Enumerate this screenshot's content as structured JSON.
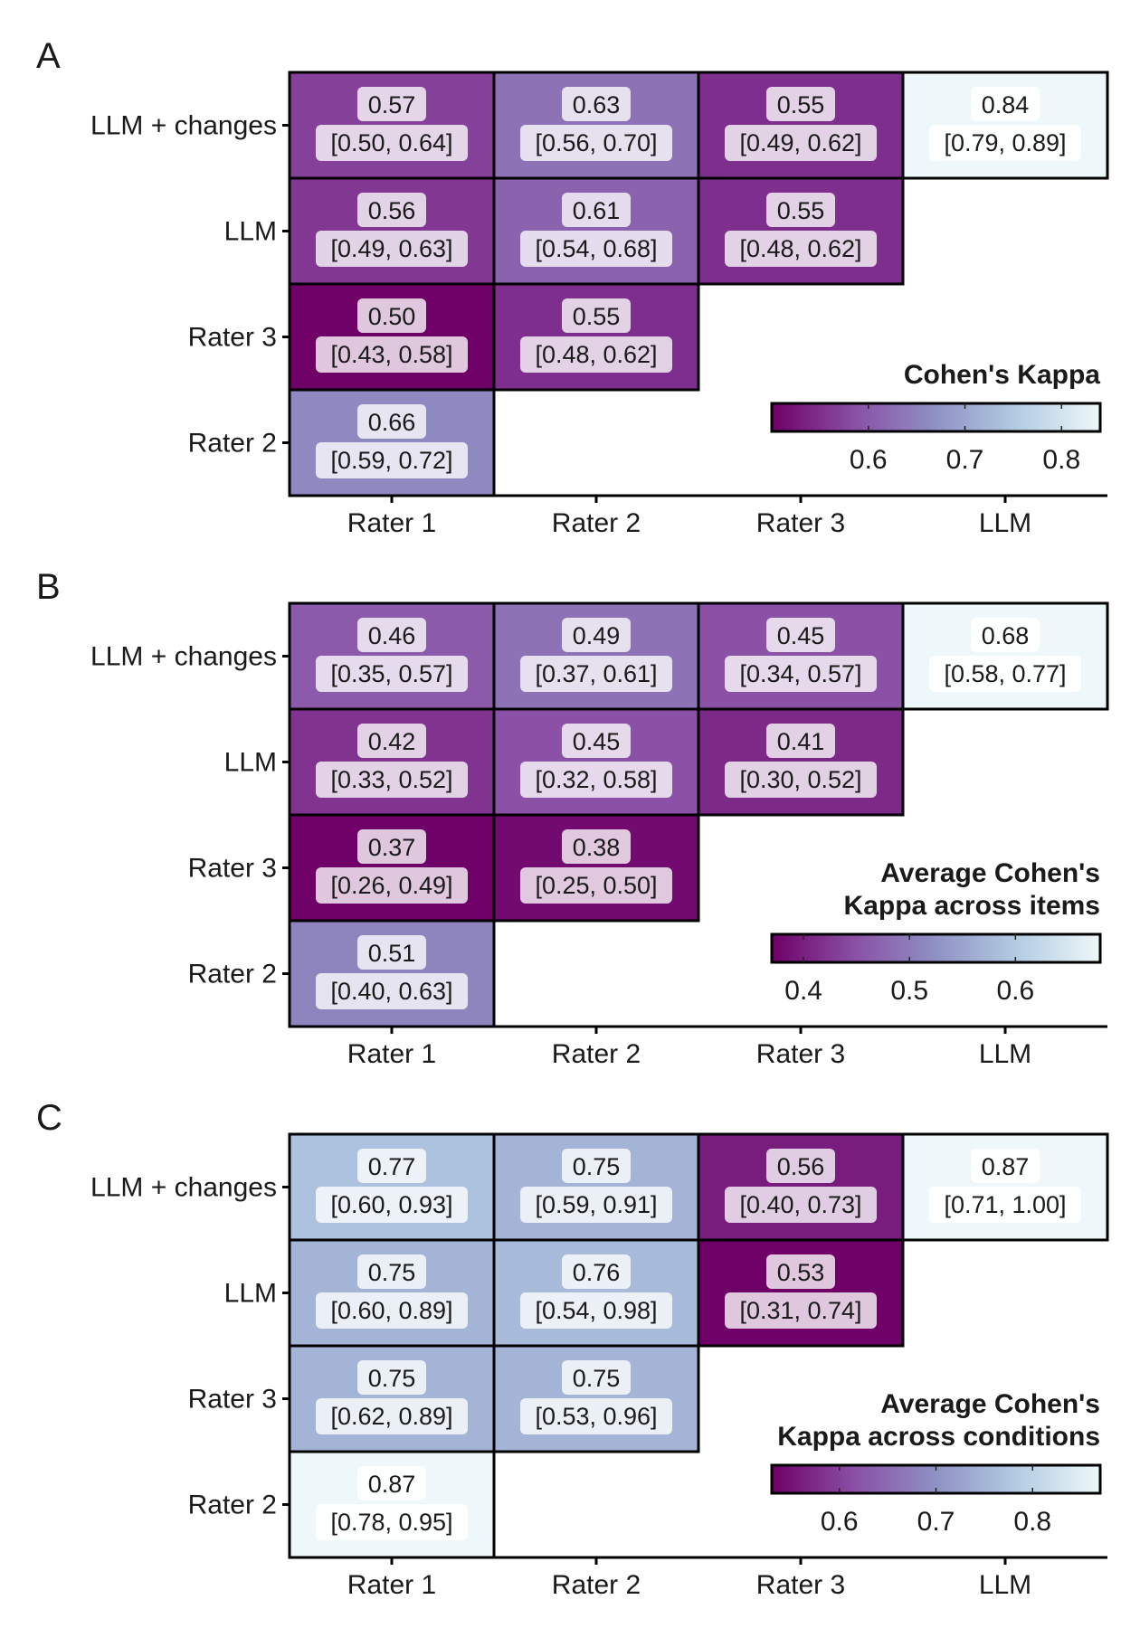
{
  "chart_data": [
    {
      "type": "heatmap",
      "panel": "A",
      "x_categories": [
        "Rater 1",
        "Rater 2",
        "Rater 3",
        "LLM"
      ],
      "y_categories": [
        "LLM + changes",
        "LLM",
        "Rater 3",
        "Rater 2"
      ],
      "legend_title": [
        "Cohen's Kappa"
      ],
      "legend_ticks": [
        0.6,
        0.7,
        0.8
      ],
      "color_range": [
        0.5,
        0.84
      ],
      "cells": [
        {
          "row": "LLM + changes",
          "col": "Rater 1",
          "value": 0.57,
          "label": "0.57",
          "ci": "[0.50, 0.64]"
        },
        {
          "row": "LLM + changes",
          "col": "Rater 2",
          "value": 0.63,
          "label": "0.63",
          "ci": "[0.56, 0.70]"
        },
        {
          "row": "LLM + changes",
          "col": "Rater 3",
          "value": 0.55,
          "label": "0.55",
          "ci": "[0.49, 0.62]"
        },
        {
          "row": "LLM + changes",
          "col": "LLM",
          "value": 0.84,
          "label": "0.84",
          "ci": "[0.79, 0.89]"
        },
        {
          "row": "LLM",
          "col": "Rater 1",
          "value": 0.56,
          "label": "0.56",
          "ci": "[0.49, 0.63]"
        },
        {
          "row": "LLM",
          "col": "Rater 2",
          "value": 0.61,
          "label": "0.61",
          "ci": "[0.54, 0.68]"
        },
        {
          "row": "LLM",
          "col": "Rater 3",
          "value": 0.55,
          "label": "0.55",
          "ci": "[0.48, 0.62]"
        },
        {
          "row": "Rater 3",
          "col": "Rater 1",
          "value": 0.5,
          "label": "0.50",
          "ci": "[0.43, 0.58]"
        },
        {
          "row": "Rater 3",
          "col": "Rater 2",
          "value": 0.55,
          "label": "0.55",
          "ci": "[0.48, 0.62]"
        },
        {
          "row": "Rater 2",
          "col": "Rater 1",
          "value": 0.66,
          "label": "0.66",
          "ci": "[0.59, 0.72]"
        }
      ]
    },
    {
      "type": "heatmap",
      "panel": "B",
      "x_categories": [
        "Rater 1",
        "Rater 2",
        "Rater 3",
        "LLM"
      ],
      "y_categories": [
        "LLM + changes",
        "LLM",
        "Rater 3",
        "Rater 2"
      ],
      "legend_title": [
        "Average Cohen's",
        "Kappa across items"
      ],
      "legend_ticks": [
        0.4,
        0.5,
        0.6
      ],
      "color_range": [
        0.37,
        0.68
      ],
      "cells": [
        {
          "row": "LLM + changes",
          "col": "Rater 1",
          "value": 0.46,
          "label": "0.46",
          "ci": "[0.35, 0.57]"
        },
        {
          "row": "LLM + changes",
          "col": "Rater 2",
          "value": 0.49,
          "label": "0.49",
          "ci": "[0.37, 0.61]"
        },
        {
          "row": "LLM + changes",
          "col": "Rater 3",
          "value": 0.45,
          "label": "0.45",
          "ci": "[0.34, 0.57]"
        },
        {
          "row": "LLM + changes",
          "col": "LLM",
          "value": 0.68,
          "label": "0.68",
          "ci": "[0.58, 0.77]"
        },
        {
          "row": "LLM",
          "col": "Rater 1",
          "value": 0.42,
          "label": "0.42",
          "ci": "[0.33, 0.52]"
        },
        {
          "row": "LLM",
          "col": "Rater 2",
          "value": 0.45,
          "label": "0.45",
          "ci": "[0.32, 0.58]"
        },
        {
          "row": "LLM",
          "col": "Rater 3",
          "value": 0.41,
          "label": "0.41",
          "ci": "[0.30, 0.52]"
        },
        {
          "row": "Rater 3",
          "col": "Rater 1",
          "value": 0.37,
          "label": "0.37",
          "ci": "[0.26, 0.49]"
        },
        {
          "row": "Rater 3",
          "col": "Rater 2",
          "value": 0.38,
          "label": "0.38",
          "ci": "[0.25, 0.50]"
        },
        {
          "row": "Rater 2",
          "col": "Rater 1",
          "value": 0.51,
          "label": "0.51",
          "ci": "[0.40, 0.63]"
        }
      ]
    },
    {
      "type": "heatmap",
      "panel": "C",
      "x_categories": [
        "Rater 1",
        "Rater 2",
        "Rater 3",
        "LLM"
      ],
      "y_categories": [
        "LLM + changes",
        "LLM",
        "Rater 3",
        "Rater 2"
      ],
      "legend_title": [
        "Average Cohen's",
        "Kappa across conditions"
      ],
      "legend_ticks": [
        0.6,
        0.7,
        0.8
      ],
      "color_range": [
        0.53,
        0.87
      ],
      "cells": [
        {
          "row": "LLM + changes",
          "col": "Rater 1",
          "value": 0.77,
          "label": "0.77",
          "ci": "[0.60, 0.93]"
        },
        {
          "row": "LLM + changes",
          "col": "Rater 2",
          "value": 0.75,
          "label": "0.75",
          "ci": "[0.59, 0.91]"
        },
        {
          "row": "LLM + changes",
          "col": "Rater 3",
          "value": 0.56,
          "label": "0.56",
          "ci": "[0.40, 0.73]"
        },
        {
          "row": "LLM + changes",
          "col": "LLM",
          "value": 0.87,
          "label": "0.87",
          "ci": "[0.71, 1.00]"
        },
        {
          "row": "LLM",
          "col": "Rater 1",
          "value": 0.75,
          "label": "0.75",
          "ci": "[0.60, 0.89]"
        },
        {
          "row": "LLM",
          "col": "Rater 2",
          "value": 0.76,
          "label": "0.76",
          "ci": "[0.54, 0.98]"
        },
        {
          "row": "LLM",
          "col": "Rater 3",
          "value": 0.53,
          "label": "0.53",
          "ci": "[0.31, 0.74]"
        },
        {
          "row": "Rater 3",
          "col": "Rater 1",
          "value": 0.75,
          "label": "0.75",
          "ci": "[0.62, 0.89]"
        },
        {
          "row": "Rater 3",
          "col": "Rater 2",
          "value": 0.75,
          "label": "0.75",
          "ci": "[0.53, 0.96]"
        },
        {
          "row": "Rater 2",
          "col": "Rater 1",
          "value": 0.87,
          "label": "0.87",
          "ci": "[0.78, 0.95]"
        }
      ]
    }
  ],
  "colors": {
    "scale": [
      "#6e0068",
      "#8a4fa5",
      "#8f91c4",
      "#b3cde3",
      "#eef7f9"
    ],
    "border": "#000000",
    "label_box": "#ffffff"
  }
}
